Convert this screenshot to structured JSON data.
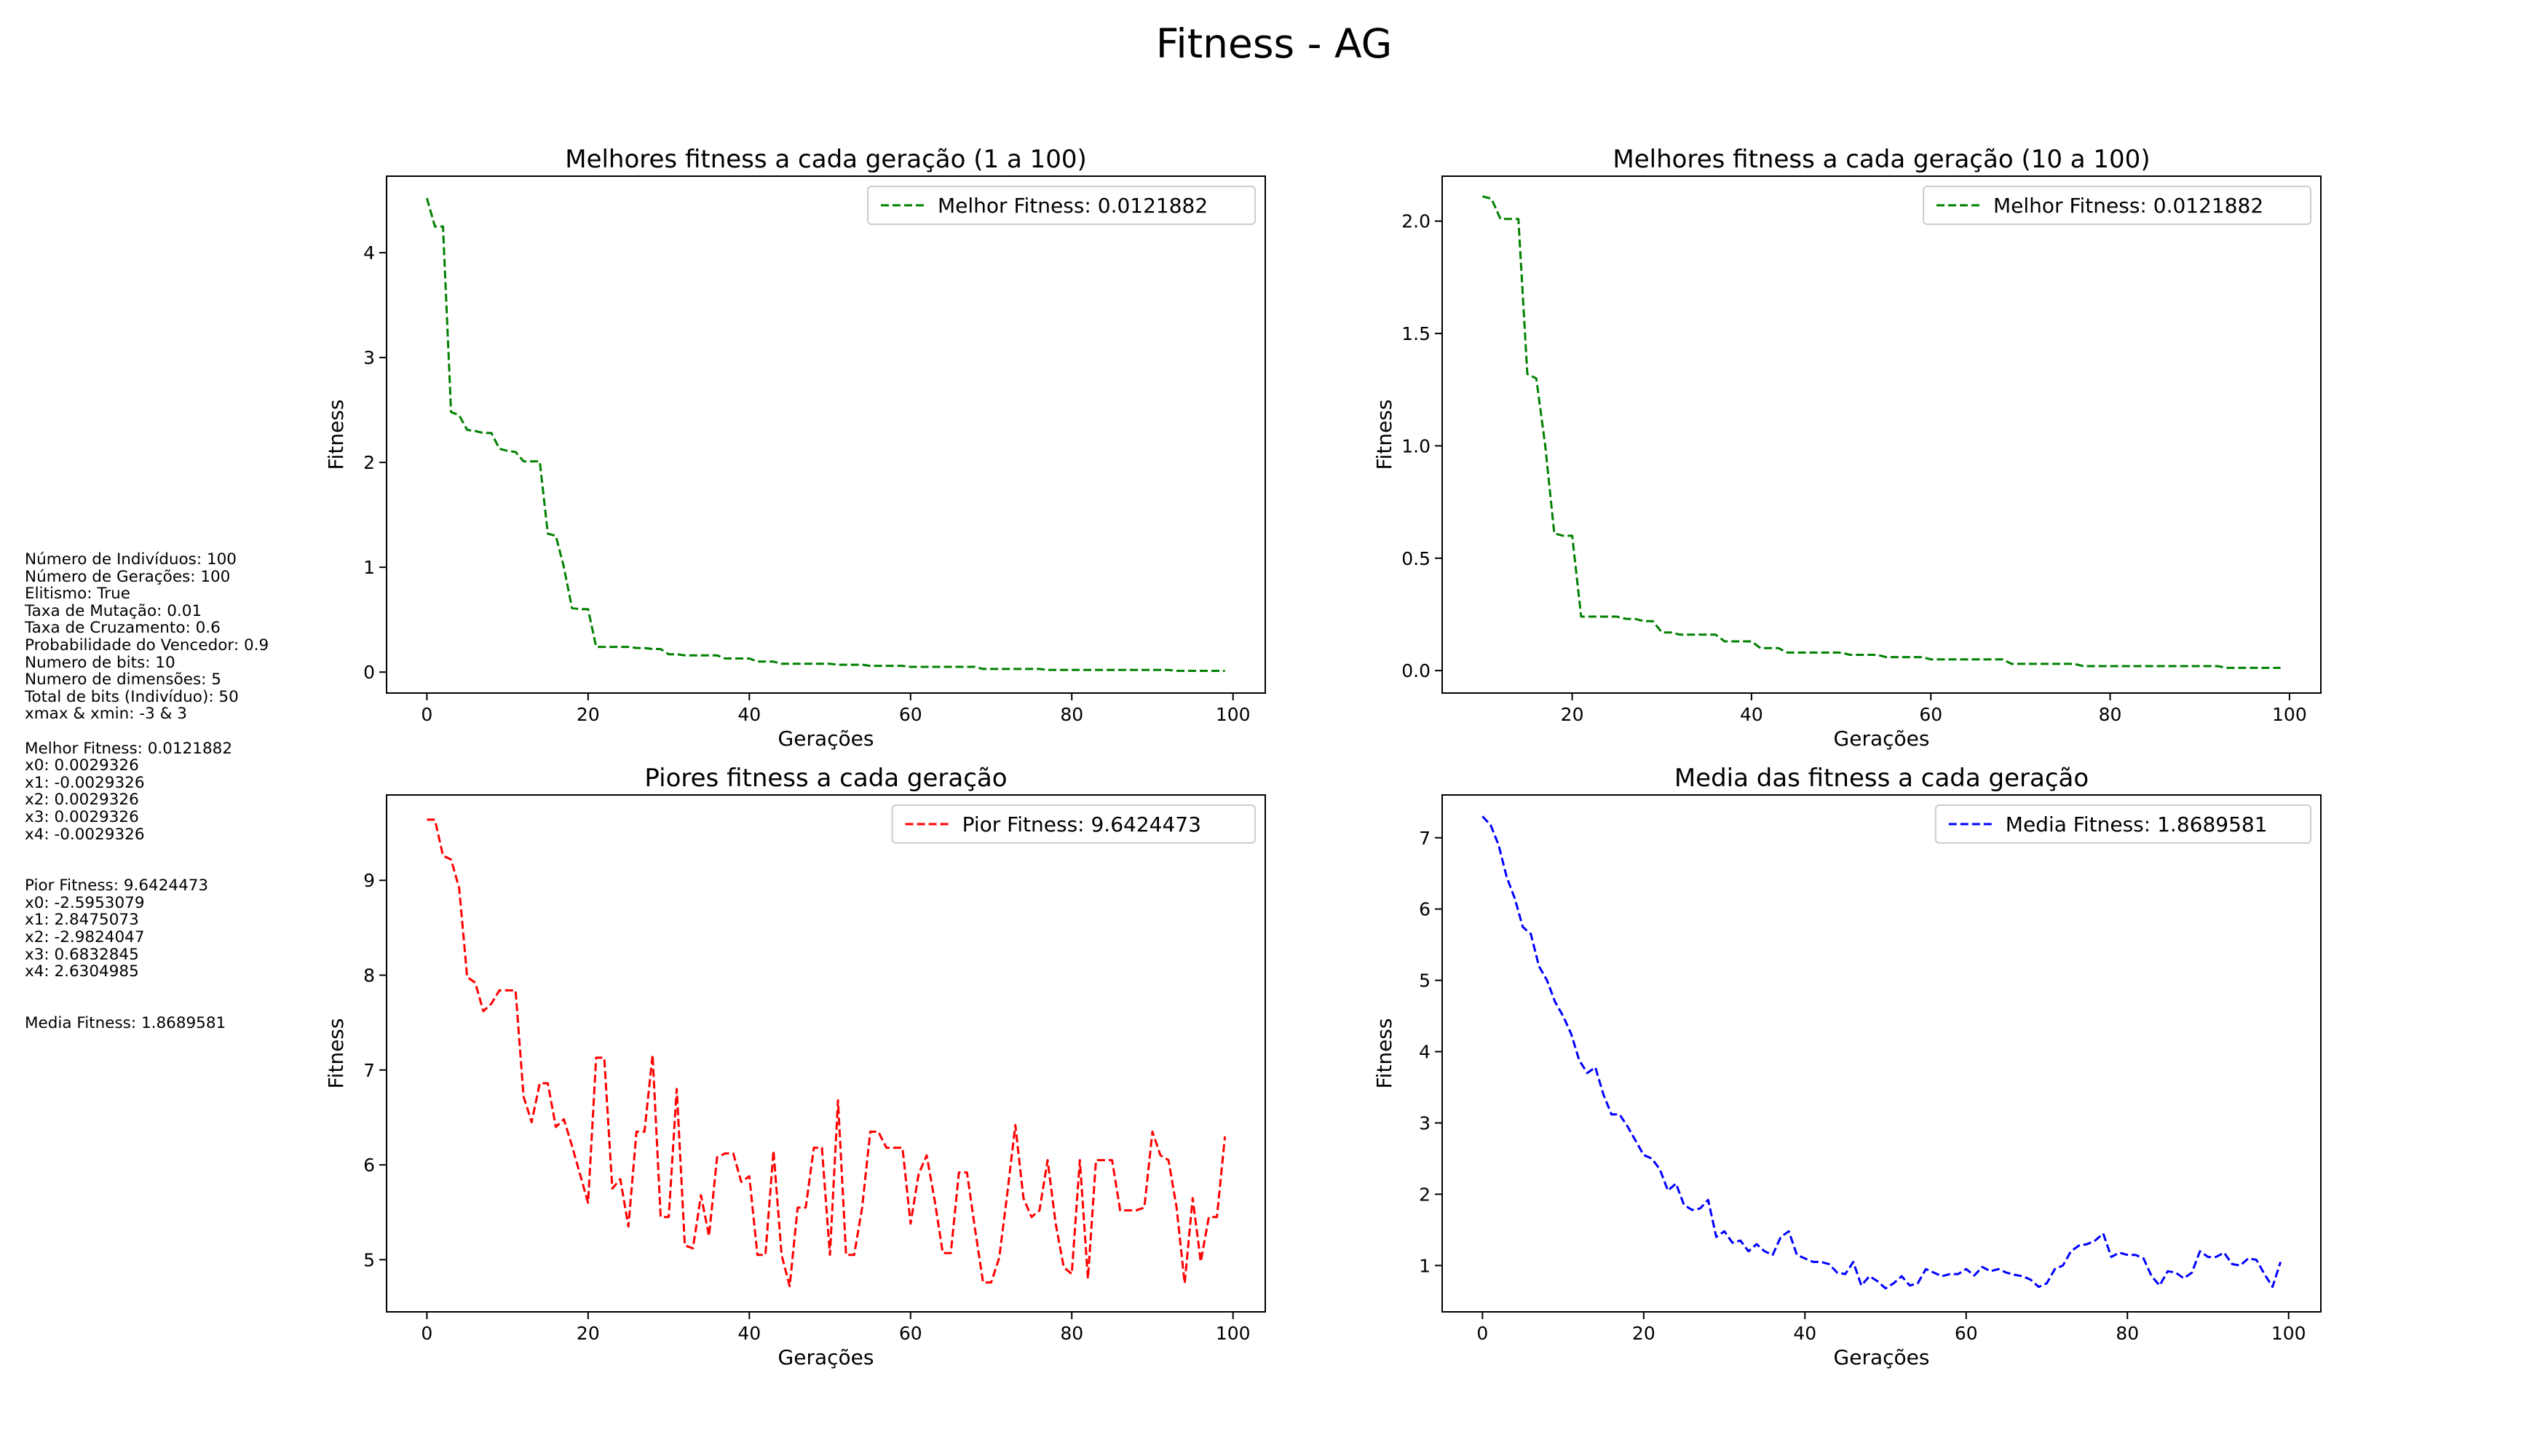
{
  "figure_title": "Fitness - AG",
  "info_lines": [
    "Número de Indivíduos: 100",
    "Número de Gerações: 100",
    "Elitismo: True",
    "Taxa de Mutação: 0.01",
    "Taxa de Cruzamento: 0.6",
    "Probabilidade do Vencedor: 0.9",
    "Numero de bits: 10",
    "Numero de dimensões: 5",
    "Total de bits (Indivíduo): 50",
    "xmax & xmin: -3 & 3",
    "",
    "Melhor Fitness: 0.0121882",
    "x0: 0.0029326",
    "x1: -0.0029326",
    "x2: 0.0029326",
    "x3: 0.0029326",
    "x4: -0.0029326",
    "",
    "",
    "Pior Fitness: 9.6424473",
    "x0: -2.5953079",
    "x1: 2.8475073",
    "x2: -2.9824047",
    "x3: 0.6832845",
    "x4: 2.6304985",
    "",
    "",
    "Media Fitness: 1.8689581"
  ],
  "colors": {
    "green": "#008000",
    "red": "#ff0000",
    "blue": "#0000ff"
  },
  "chart_data": [
    {
      "type": "line",
      "title": "Melhores fitness a cada geração (1 a 100)",
      "xlabel": "Gerações",
      "ylabel": "Fitness",
      "xlim": [
        -5,
        104
      ],
      "ylim": [
        -0.2,
        4.73
      ],
      "xticks": [
        0,
        20,
        40,
        60,
        80,
        100
      ],
      "yticks": [
        0,
        1,
        2,
        3,
        4
      ],
      "legend_position": "upper right",
      "series": [
        {
          "name": "Melhor Fitness: 0.0121882",
          "color": "#008000",
          "x": [
            0,
            1,
            2,
            3,
            4,
            5,
            6,
            7,
            8,
            9,
            10,
            11,
            12,
            13,
            14,
            15,
            16,
            17,
            18,
            19,
            20,
            21,
            22,
            23,
            24,
            25,
            26,
            27,
            28,
            29,
            30,
            31,
            32,
            33,
            34,
            35,
            36,
            37,
            38,
            39,
            40,
            41,
            42,
            43,
            44,
            45,
            46,
            47,
            48,
            49,
            50,
            51,
            52,
            53,
            54,
            55,
            56,
            57,
            58,
            59,
            60,
            61,
            62,
            63,
            64,
            65,
            66,
            67,
            68,
            69,
            70,
            71,
            72,
            73,
            74,
            75,
            76,
            77,
            78,
            79,
            80,
            81,
            82,
            83,
            84,
            85,
            86,
            87,
            88,
            89,
            90,
            91,
            92,
            93,
            94,
            95,
            96,
            97,
            98,
            99
          ],
          "y": [
            4.52,
            4.25,
            4.25,
            2.48,
            2.45,
            2.31,
            2.3,
            2.28,
            2.28,
            2.13,
            2.11,
            2.1,
            2.01,
            2.01,
            2.01,
            1.32,
            1.3,
            1.0,
            0.61,
            0.6,
            0.6,
            0.24,
            0.24,
            0.24,
            0.24,
            0.24,
            0.23,
            0.23,
            0.22,
            0.22,
            0.17,
            0.17,
            0.16,
            0.16,
            0.16,
            0.16,
            0.16,
            0.13,
            0.13,
            0.13,
            0.13,
            0.1,
            0.1,
            0.1,
            0.08,
            0.08,
            0.08,
            0.08,
            0.08,
            0.08,
            0.08,
            0.07,
            0.07,
            0.07,
            0.07,
            0.06,
            0.06,
            0.06,
            0.06,
            0.06,
            0.05,
            0.05,
            0.05,
            0.05,
            0.05,
            0.05,
            0.05,
            0.05,
            0.05,
            0.03,
            0.03,
            0.03,
            0.03,
            0.03,
            0.03,
            0.03,
            0.03,
            0.02,
            0.02,
            0.02,
            0.02,
            0.02,
            0.02,
            0.02,
            0.02,
            0.02,
            0.02,
            0.02,
            0.02,
            0.02,
            0.02,
            0.02,
            0.02,
            0.012,
            0.012,
            0.012,
            0.012,
            0.012,
            0.012,
            0.012
          ]
        }
      ]
    },
    {
      "type": "line",
      "title": "Melhores fitness a cada geração (10 a 100)",
      "xlabel": "Gerações",
      "ylabel": "Fitness",
      "xlim": [
        5.5,
        103.5
      ],
      "ylim": [
        -0.1,
        2.2
      ],
      "xticks": [
        20,
        40,
        60,
        80,
        100
      ],
      "yticks": [
        0.0,
        0.5,
        1.0,
        1.5,
        2.0
      ],
      "yticklabels": [
        "0.0",
        "0.5",
        "1.0",
        "1.5",
        "2.0"
      ],
      "legend_position": "upper right",
      "series": [
        {
          "name": "Melhor Fitness: 0.0121882",
          "color": "#008000",
          "x": [
            10,
            11,
            12,
            13,
            14,
            15,
            16,
            17,
            18,
            19,
            20,
            21,
            22,
            23,
            24,
            25,
            26,
            27,
            28,
            29,
            30,
            31,
            32,
            33,
            34,
            35,
            36,
            37,
            38,
            39,
            40,
            41,
            42,
            43,
            44,
            45,
            46,
            47,
            48,
            49,
            50,
            51,
            52,
            53,
            54,
            55,
            56,
            57,
            58,
            59,
            60,
            61,
            62,
            63,
            64,
            65,
            66,
            67,
            68,
            69,
            70,
            71,
            72,
            73,
            74,
            75,
            76,
            77,
            78,
            79,
            80,
            81,
            82,
            83,
            84,
            85,
            86,
            87,
            88,
            89,
            90,
            91,
            92,
            93,
            94,
            95,
            96,
            97,
            98,
            99
          ],
          "y": [
            2.11,
            2.1,
            2.01,
            2.01,
            2.01,
            1.32,
            1.3,
            1.0,
            0.61,
            0.6,
            0.6,
            0.24,
            0.24,
            0.24,
            0.24,
            0.24,
            0.23,
            0.23,
            0.22,
            0.22,
            0.17,
            0.17,
            0.16,
            0.16,
            0.16,
            0.16,
            0.16,
            0.13,
            0.13,
            0.13,
            0.13,
            0.1,
            0.1,
            0.1,
            0.08,
            0.08,
            0.08,
            0.08,
            0.08,
            0.08,
            0.08,
            0.07,
            0.07,
            0.07,
            0.07,
            0.06,
            0.06,
            0.06,
            0.06,
            0.06,
            0.05,
            0.05,
            0.05,
            0.05,
            0.05,
            0.05,
            0.05,
            0.05,
            0.05,
            0.03,
            0.03,
            0.03,
            0.03,
            0.03,
            0.03,
            0.03,
            0.03,
            0.02,
            0.02,
            0.02,
            0.02,
            0.02,
            0.02,
            0.02,
            0.02,
            0.02,
            0.02,
            0.02,
            0.02,
            0.02,
            0.02,
            0.02,
            0.02,
            0.012,
            0.012,
            0.012,
            0.012,
            0.012,
            0.012,
            0.012
          ]
        }
      ]
    },
    {
      "type": "line",
      "title": "Piores fitness a cada geração",
      "xlabel": "Gerações",
      "ylabel": "Fitness",
      "xlim": [
        -5,
        104
      ],
      "ylim": [
        4.45,
        9.9
      ],
      "xticks": [
        0,
        20,
        40,
        60,
        80,
        100
      ],
      "yticks": [
        5,
        6,
        7,
        8,
        9
      ],
      "legend_position": "upper right",
      "series": [
        {
          "name": "Pior Fitness: 9.6424473",
          "color": "#ff0000",
          "x": [
            0,
            1,
            2,
            3,
            4,
            5,
            6,
            7,
            8,
            9,
            10,
            11,
            12,
            13,
            14,
            15,
            16,
            17,
            18,
            19,
            20,
            21,
            22,
            23,
            24,
            25,
            26,
            27,
            28,
            29,
            30,
            31,
            32,
            33,
            34,
            35,
            36,
            37,
            38,
            39,
            40,
            41,
            42,
            43,
            44,
            45,
            46,
            47,
            48,
            49,
            50,
            51,
            52,
            53,
            54,
            55,
            56,
            57,
            58,
            59,
            60,
            61,
            62,
            63,
            64,
            65,
            66,
            67,
            68,
            69,
            70,
            71,
            72,
            73,
            74,
            75,
            76,
            77,
            78,
            79,
            80,
            81,
            82,
            83,
            84,
            85,
            86,
            87,
            88,
            89,
            90,
            91,
            92,
            93,
            94,
            95,
            96,
            97,
            98,
            99
          ],
          "y": [
            9.64,
            9.64,
            9.26,
            9.22,
            8.92,
            7.98,
            7.92,
            7.62,
            7.7,
            7.84,
            7.84,
            7.84,
            6.72,
            6.45,
            6.86,
            6.86,
            6.4,
            6.48,
            6.2,
            5.9,
            5.6,
            7.13,
            7.13,
            5.75,
            5.85,
            5.35,
            6.35,
            6.35,
            7.16,
            5.45,
            5.45,
            6.8,
            5.15,
            5.12,
            5.68,
            5.25,
            6.08,
            6.12,
            6.12,
            5.82,
            5.88,
            5.05,
            5.05,
            6.15,
            5.05,
            4.72,
            5.55,
            5.55,
            6.18,
            6.18,
            5.05,
            6.68,
            5.05,
            5.05,
            5.55,
            6.35,
            6.35,
            6.18,
            6.18,
            6.18,
            5.38,
            5.9,
            6.1,
            5.62,
            5.07,
            5.07,
            5.92,
            5.92,
            5.32,
            4.76,
            4.76,
            5.02,
            5.7,
            6.42,
            5.65,
            5.45,
            5.52,
            6.05,
            5.38,
            4.92,
            4.85,
            6.05,
            4.8,
            6.05,
            6.05,
            6.05,
            5.52,
            5.52,
            5.52,
            5.55,
            6.35,
            6.1,
            6.05,
            5.55,
            4.75,
            5.65,
            4.98,
            5.45,
            5.45,
            6.3
          ]
        }
      ]
    },
    {
      "type": "line",
      "title": "Media das fitness a cada geração",
      "xlabel": "Gerações",
      "ylabel": "Fitness",
      "xlim": [
        -5,
        104
      ],
      "ylim": [
        0.35,
        7.6
      ],
      "xticks": [
        0,
        20,
        40,
        60,
        80,
        100
      ],
      "yticks": [
        1,
        2,
        3,
        4,
        5,
        6,
        7
      ],
      "legend_position": "upper right",
      "series": [
        {
          "name": "Media Fitness: 1.8689581",
          "color": "#0000ff",
          "x": [
            0,
            1,
            2,
            3,
            4,
            5,
            6,
            7,
            8,
            9,
            10,
            11,
            12,
            13,
            14,
            15,
            16,
            17,
            18,
            19,
            20,
            21,
            22,
            23,
            24,
            25,
            26,
            27,
            28,
            29,
            30,
            31,
            32,
            33,
            34,
            35,
            36,
            37,
            38,
            39,
            40,
            41,
            42,
            43,
            44,
            45,
            46,
            47,
            48,
            49,
            50,
            51,
            52,
            53,
            54,
            55,
            56,
            57,
            58,
            59,
            60,
            61,
            62,
            63,
            64,
            65,
            66,
            67,
            68,
            69,
            70,
            71,
            72,
            73,
            74,
            75,
            76,
            77,
            78,
            79,
            80,
            81,
            82,
            83,
            84,
            85,
            86,
            87,
            88,
            89,
            90,
            91,
            92,
            93,
            94,
            95,
            96,
            97,
            98,
            99
          ],
          "y": [
            7.3,
            7.18,
            6.9,
            6.45,
            6.15,
            5.75,
            5.65,
            5.2,
            5.0,
            4.7,
            4.5,
            4.25,
            3.88,
            3.7,
            3.78,
            3.4,
            3.12,
            3.12,
            2.95,
            2.75,
            2.55,
            2.5,
            2.35,
            2.05,
            2.15,
            1.85,
            1.78,
            1.8,
            1.92,
            1.4,
            1.48,
            1.32,
            1.35,
            1.2,
            1.3,
            1.2,
            1.15,
            1.4,
            1.48,
            1.15,
            1.1,
            1.05,
            1.05,
            1.02,
            0.9,
            0.88,
            1.05,
            0.72,
            0.85,
            0.78,
            0.68,
            0.75,
            0.85,
            0.72,
            0.75,
            0.95,
            0.9,
            0.85,
            0.88,
            0.88,
            0.95,
            0.86,
            0.98,
            0.92,
            0.95,
            0.9,
            0.87,
            0.85,
            0.8,
            0.7,
            0.75,
            0.95,
            1.0,
            1.2,
            1.28,
            1.3,
            1.35,
            1.45,
            1.12,
            1.18,
            1.15,
            1.15,
            1.1,
            0.85,
            0.72,
            0.92,
            0.9,
            0.82,
            0.9,
            1.2,
            1.12,
            1.12,
            1.18,
            1.02,
            1.0,
            1.1,
            1.08,
            0.88,
            0.7,
            1.05
          ]
        }
      ]
    }
  ]
}
